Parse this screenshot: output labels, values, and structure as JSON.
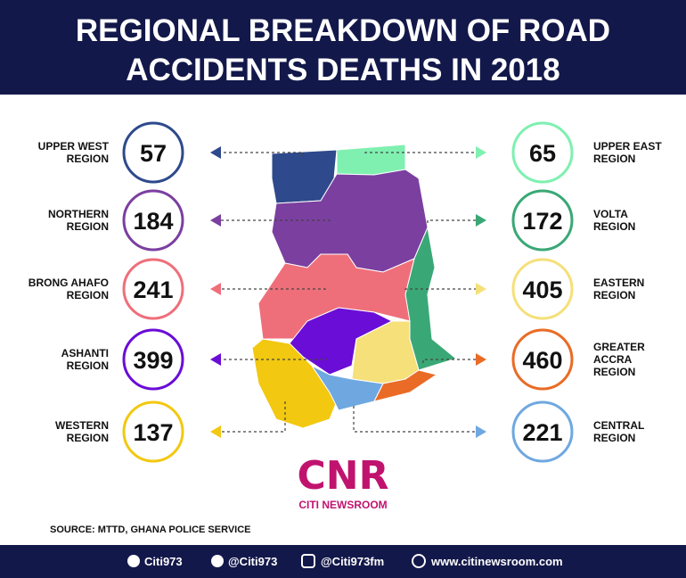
{
  "header": {
    "title_lines": [
      "REGIONAL BREAKDOWN OF ROAD",
      "ACCIDENTS DEATHS IN 2018"
    ]
  },
  "left_regions": [
    {
      "label_lines": [
        "UPPER WEST",
        "REGION"
      ],
      "value": 57
    },
    {
      "label_lines": [
        "NORTHERN",
        "REGION"
      ],
      "value": 184
    },
    {
      "label_lines": [
        "BRONG AHAFO",
        "REGION"
      ],
      "value": 241
    },
    {
      "label_lines": [
        "ASHANTI",
        "REGION"
      ],
      "value": 399
    },
    {
      "label_lines": [
        "WESTERN",
        "REGION"
      ],
      "value": 137
    }
  ],
  "right_regions": [
    {
      "label_lines": [
        "UPPER EAST",
        "REGION"
      ],
      "value": 65
    },
    {
      "label_lines": [
        "VOLTA",
        "REGION"
      ],
      "value": 172
    },
    {
      "label_lines": [
        "EASTERN",
        "REGION"
      ],
      "value": 405
    },
    {
      "label_lines": [
        "GREATER",
        "ACCRA",
        "REGION"
      ],
      "value": 460
    },
    {
      "label_lines": [
        "CENTRAL",
        "REGION"
      ],
      "value": 221
    }
  ],
  "logo": {
    "mark": "CNR",
    "name": "CITI NEWSROOM"
  },
  "source": "SOURCE: MTTD, GHANA POLICE SERVICE",
  "footer": {
    "facebook": "Citi973",
    "twitter": "@Citi973",
    "instagram": "@Citi973fm",
    "website": "www.citinewsroom.com"
  }
}
